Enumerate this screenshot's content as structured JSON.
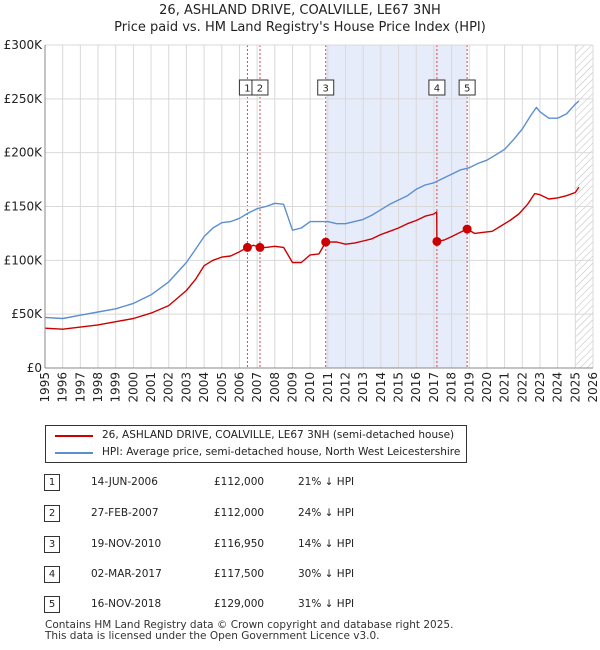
{
  "chart_data": {
    "type": "line",
    "title": "26, ASHLAND DRIVE, COALVILLE, LE67 3NH",
    "subtitle": "Price paid vs. HM Land Registry's House Price Index (HPI)",
    "xlim": [
      1995,
      2026
    ],
    "ylim": [
      0,
      300000
    ],
    "x_ticks": [
      "1995",
      "1996",
      "1997",
      "1998",
      "1999",
      "2000",
      "2001",
      "2002",
      "2003",
      "2004",
      "2005",
      "2006",
      "2007",
      "2008",
      "2009",
      "2010",
      "2011",
      "2012",
      "2013",
      "2014",
      "2015",
      "2016",
      "2017",
      "2018",
      "2019",
      "2020",
      "2021",
      "2022",
      "2023",
      "2024",
      "2025",
      "2026"
    ],
    "y_ticks": [
      {
        "value": 0,
        "label": "£0"
      },
      {
        "value": 50000,
        "label": "£50K"
      },
      {
        "value": 100000,
        "label": "£100K"
      },
      {
        "value": 150000,
        "label": "£150K"
      },
      {
        "value": 200000,
        "label": "£200K"
      },
      {
        "value": 250000,
        "label": "£250K"
      },
      {
        "value": 300000,
        "label": "£300K"
      }
    ],
    "grid": true,
    "shaded_range": [
      2010.88,
      2018.88
    ],
    "hatched_after": 2025.0,
    "series": [
      {
        "name": "26, ASHLAND DRIVE, COALVILLE, LE67 3NH (semi-detached house)",
        "color": "#cc0000",
        "points": [
          [
            1995.0,
            37000
          ],
          [
            1996.0,
            36000
          ],
          [
            1997.0,
            38000
          ],
          [
            1998.0,
            40000
          ],
          [
            1999.0,
            43000
          ],
          [
            2000.0,
            46000
          ],
          [
            2001.0,
            51000
          ],
          [
            2002.0,
            58000
          ],
          [
            2003.0,
            72000
          ],
          [
            2003.5,
            82000
          ],
          [
            2004.0,
            95000
          ],
          [
            2004.5,
            100000
          ],
          [
            2005.0,
            103000
          ],
          [
            2005.5,
            104000
          ],
          [
            2006.0,
            108000
          ],
          [
            2006.45,
            112000
          ],
          [
            2006.8,
            114000
          ],
          [
            2007.16,
            112000
          ],
          [
            2007.5,
            112000
          ],
          [
            2008.0,
            113000
          ],
          [
            2008.5,
            112000
          ],
          [
            2009.0,
            98000
          ],
          [
            2009.5,
            98000
          ],
          [
            2010.0,
            105000
          ],
          [
            2010.5,
            106000
          ],
          [
            2010.88,
            116950
          ],
          [
            2011.5,
            117000
          ],
          [
            2012.0,
            115000
          ],
          [
            2012.5,
            116000
          ],
          [
            2013.0,
            118000
          ],
          [
            2013.5,
            120000
          ],
          [
            2014.0,
            124000
          ],
          [
            2014.5,
            127000
          ],
          [
            2015.0,
            130000
          ],
          [
            2015.5,
            134000
          ],
          [
            2016.0,
            137000
          ],
          [
            2016.5,
            141000
          ],
          [
            2017.0,
            143000
          ],
          [
            2017.16,
            145000
          ],
          [
            2017.17,
            117500
          ],
          [
            2017.6,
            119000
          ],
          [
            2018.0,
            122000
          ],
          [
            2018.5,
            126000
          ],
          [
            2018.88,
            129000
          ],
          [
            2019.3,
            125000
          ],
          [
            2019.8,
            126000
          ],
          [
            2020.3,
            127000
          ],
          [
            2020.8,
            132000
          ],
          [
            2021.3,
            137000
          ],
          [
            2021.8,
            143000
          ],
          [
            2022.3,
            152000
          ],
          [
            2022.7,
            162000
          ],
          [
            2023.0,
            161000
          ],
          [
            2023.5,
            157000
          ],
          [
            2024.0,
            158000
          ],
          [
            2024.5,
            160000
          ],
          [
            2025.0,
            163000
          ],
          [
            2025.2,
            168000
          ]
        ]
      },
      {
        "name": "HPI: Average price, semi-detached house, North West Leicestershire",
        "color": "#5b8fcf",
        "points": [
          [
            1995.0,
            47000
          ],
          [
            1996.0,
            46000
          ],
          [
            1997.0,
            49000
          ],
          [
            1998.0,
            52000
          ],
          [
            1999.0,
            55000
          ],
          [
            2000.0,
            60000
          ],
          [
            2001.0,
            68000
          ],
          [
            2002.0,
            80000
          ],
          [
            2003.0,
            98000
          ],
          [
            2003.5,
            110000
          ],
          [
            2004.0,
            122000
          ],
          [
            2004.5,
            130000
          ],
          [
            2005.0,
            135000
          ],
          [
            2005.5,
            136000
          ],
          [
            2006.0,
            139000
          ],
          [
            2006.5,
            144000
          ],
          [
            2007.0,
            148000
          ],
          [
            2007.5,
            150000
          ],
          [
            2008.0,
            153000
          ],
          [
            2008.5,
            152000
          ],
          [
            2009.0,
            128000
          ],
          [
            2009.5,
            130000
          ],
          [
            2010.0,
            136000
          ],
          [
            2010.5,
            136000
          ],
          [
            2011.0,
            136000
          ],
          [
            2011.5,
            134000
          ],
          [
            2012.0,
            134000
          ],
          [
            2012.5,
            136000
          ],
          [
            2013.0,
            138000
          ],
          [
            2013.5,
            142000
          ],
          [
            2014.0,
            147000
          ],
          [
            2014.5,
            152000
          ],
          [
            2015.0,
            156000
          ],
          [
            2015.5,
            160000
          ],
          [
            2016.0,
            166000
          ],
          [
            2016.5,
            170000
          ],
          [
            2017.0,
            172000
          ],
          [
            2017.5,
            176000
          ],
          [
            2018.0,
            180000
          ],
          [
            2018.5,
            184000
          ],
          [
            2019.0,
            186000
          ],
          [
            2019.5,
            190000
          ],
          [
            2020.0,
            193000
          ],
          [
            2020.5,
            198000
          ],
          [
            2021.0,
            203000
          ],
          [
            2021.5,
            212000
          ],
          [
            2022.0,
            222000
          ],
          [
            2022.5,
            235000
          ],
          [
            2022.8,
            242000
          ],
          [
            2023.0,
            238000
          ],
          [
            2023.5,
            232000
          ],
          [
            2024.0,
            232000
          ],
          [
            2024.5,
            236000
          ],
          [
            2025.0,
            245000
          ],
          [
            2025.2,
            248000
          ]
        ]
      }
    ],
    "sales": [
      {
        "id": "1",
        "x": 2006.45,
        "price": 112000
      },
      {
        "id": "2",
        "x": 2007.16,
        "price": 112000
      },
      {
        "id": "3",
        "x": 2010.88,
        "price": 116950
      },
      {
        "id": "4",
        "x": 2017.17,
        "price": 117500
      },
      {
        "id": "5",
        "x": 2018.88,
        "price": 129000
      }
    ]
  },
  "colors": {
    "property": "#cc0000",
    "hpi": "#5b8fcf",
    "shade": "#e6ecfa",
    "vline": "#dd4444"
  },
  "legend": {
    "property": "26, ASHLAND DRIVE, COALVILLE, LE67 3NH (semi-detached house)",
    "hpi": "HPI: Average price, semi-detached house, North West Leicestershire"
  },
  "transactions": [
    {
      "num": "1",
      "date": "14-JUN-2006",
      "price": "£112,000",
      "pct": "21% ↓ HPI"
    },
    {
      "num": "2",
      "date": "27-FEB-2007",
      "price": "£112,000",
      "pct": "24% ↓ HPI"
    },
    {
      "num": "3",
      "date": "19-NOV-2010",
      "price": "£116,950",
      "pct": "14% ↓ HPI"
    },
    {
      "num": "4",
      "date": "02-MAR-2017",
      "price": "£117,500",
      "pct": "30% ↓ HPI"
    },
    {
      "num": "5",
      "date": "16-NOV-2018",
      "price": "£129,000",
      "pct": "31% ↓ HPI"
    }
  ],
  "footer": {
    "line1": "Contains HM Land Registry data © Crown copyright and database right 2025.",
    "line2": "This data is licensed under the Open Government Licence v3.0."
  }
}
